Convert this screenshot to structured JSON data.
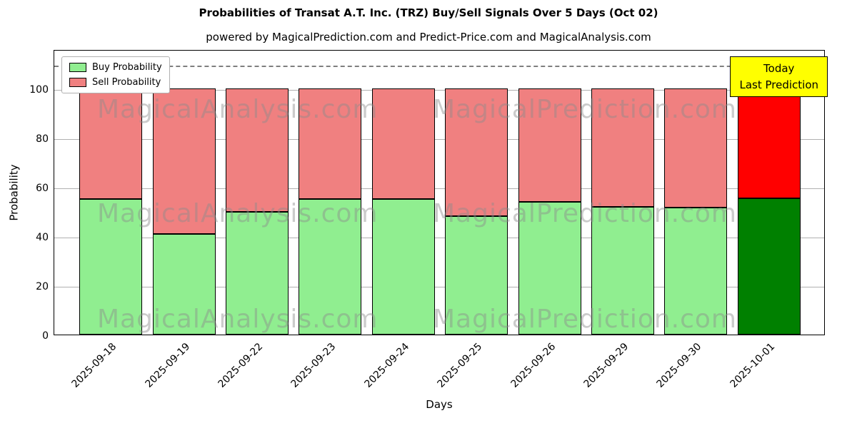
{
  "subtitle": "powered by MagicalPrediction.com and Predict-Price.com and MagicalAnalysis.com",
  "annotation": {
    "line1": "Today",
    "line2": "Last Prediction"
  },
  "legend": {
    "items": [
      {
        "label": "Buy Probability"
      },
      {
        "label": "Sell Probability"
      }
    ]
  },
  "watermarks": {
    "texts": [
      "MagicalAnalysis.com",
      "MagicalPrediction.com"
    ]
  },
  "colors": {
    "buy": "#90EE90",
    "sell": "#F08080",
    "buy_highlight": "#008000",
    "sell_highlight": "#FF0000",
    "annotation_bg": "#FFFF00",
    "grid": "#b0b0b0",
    "dashed_line": "#7f7f7f"
  },
  "chart_data": {
    "type": "bar",
    "stacked": true,
    "title": "Probabilities of Transat A.T. Inc. (TRZ) Buy/Sell Signals Over 5 Days (Oct 02)",
    "xlabel": "Days",
    "ylabel": "Probability",
    "ylim": [
      0,
      116
    ],
    "yticks": [
      0,
      20,
      40,
      60,
      80,
      100
    ],
    "grid": "horizontal",
    "legend_position": "upper-left",
    "dashed_line_y": 110,
    "categories": [
      "2025-09-18",
      "2025-09-19",
      "2025-09-22",
      "2025-09-23",
      "2025-09-24",
      "2025-09-25",
      "2025-09-26",
      "2025-09-29",
      "2025-09-30",
      "2025-10-01"
    ],
    "series": [
      {
        "name": "Buy Probability",
        "values": [
          55,
          41,
          50,
          55,
          55,
          48,
          54,
          52,
          51.5,
          55.5
        ]
      },
      {
        "name": "Sell Probability",
        "values": [
          45,
          59,
          50,
          45,
          45,
          52,
          46,
          48,
          48.5,
          44.5
        ]
      }
    ],
    "highlight_index": 9
  }
}
